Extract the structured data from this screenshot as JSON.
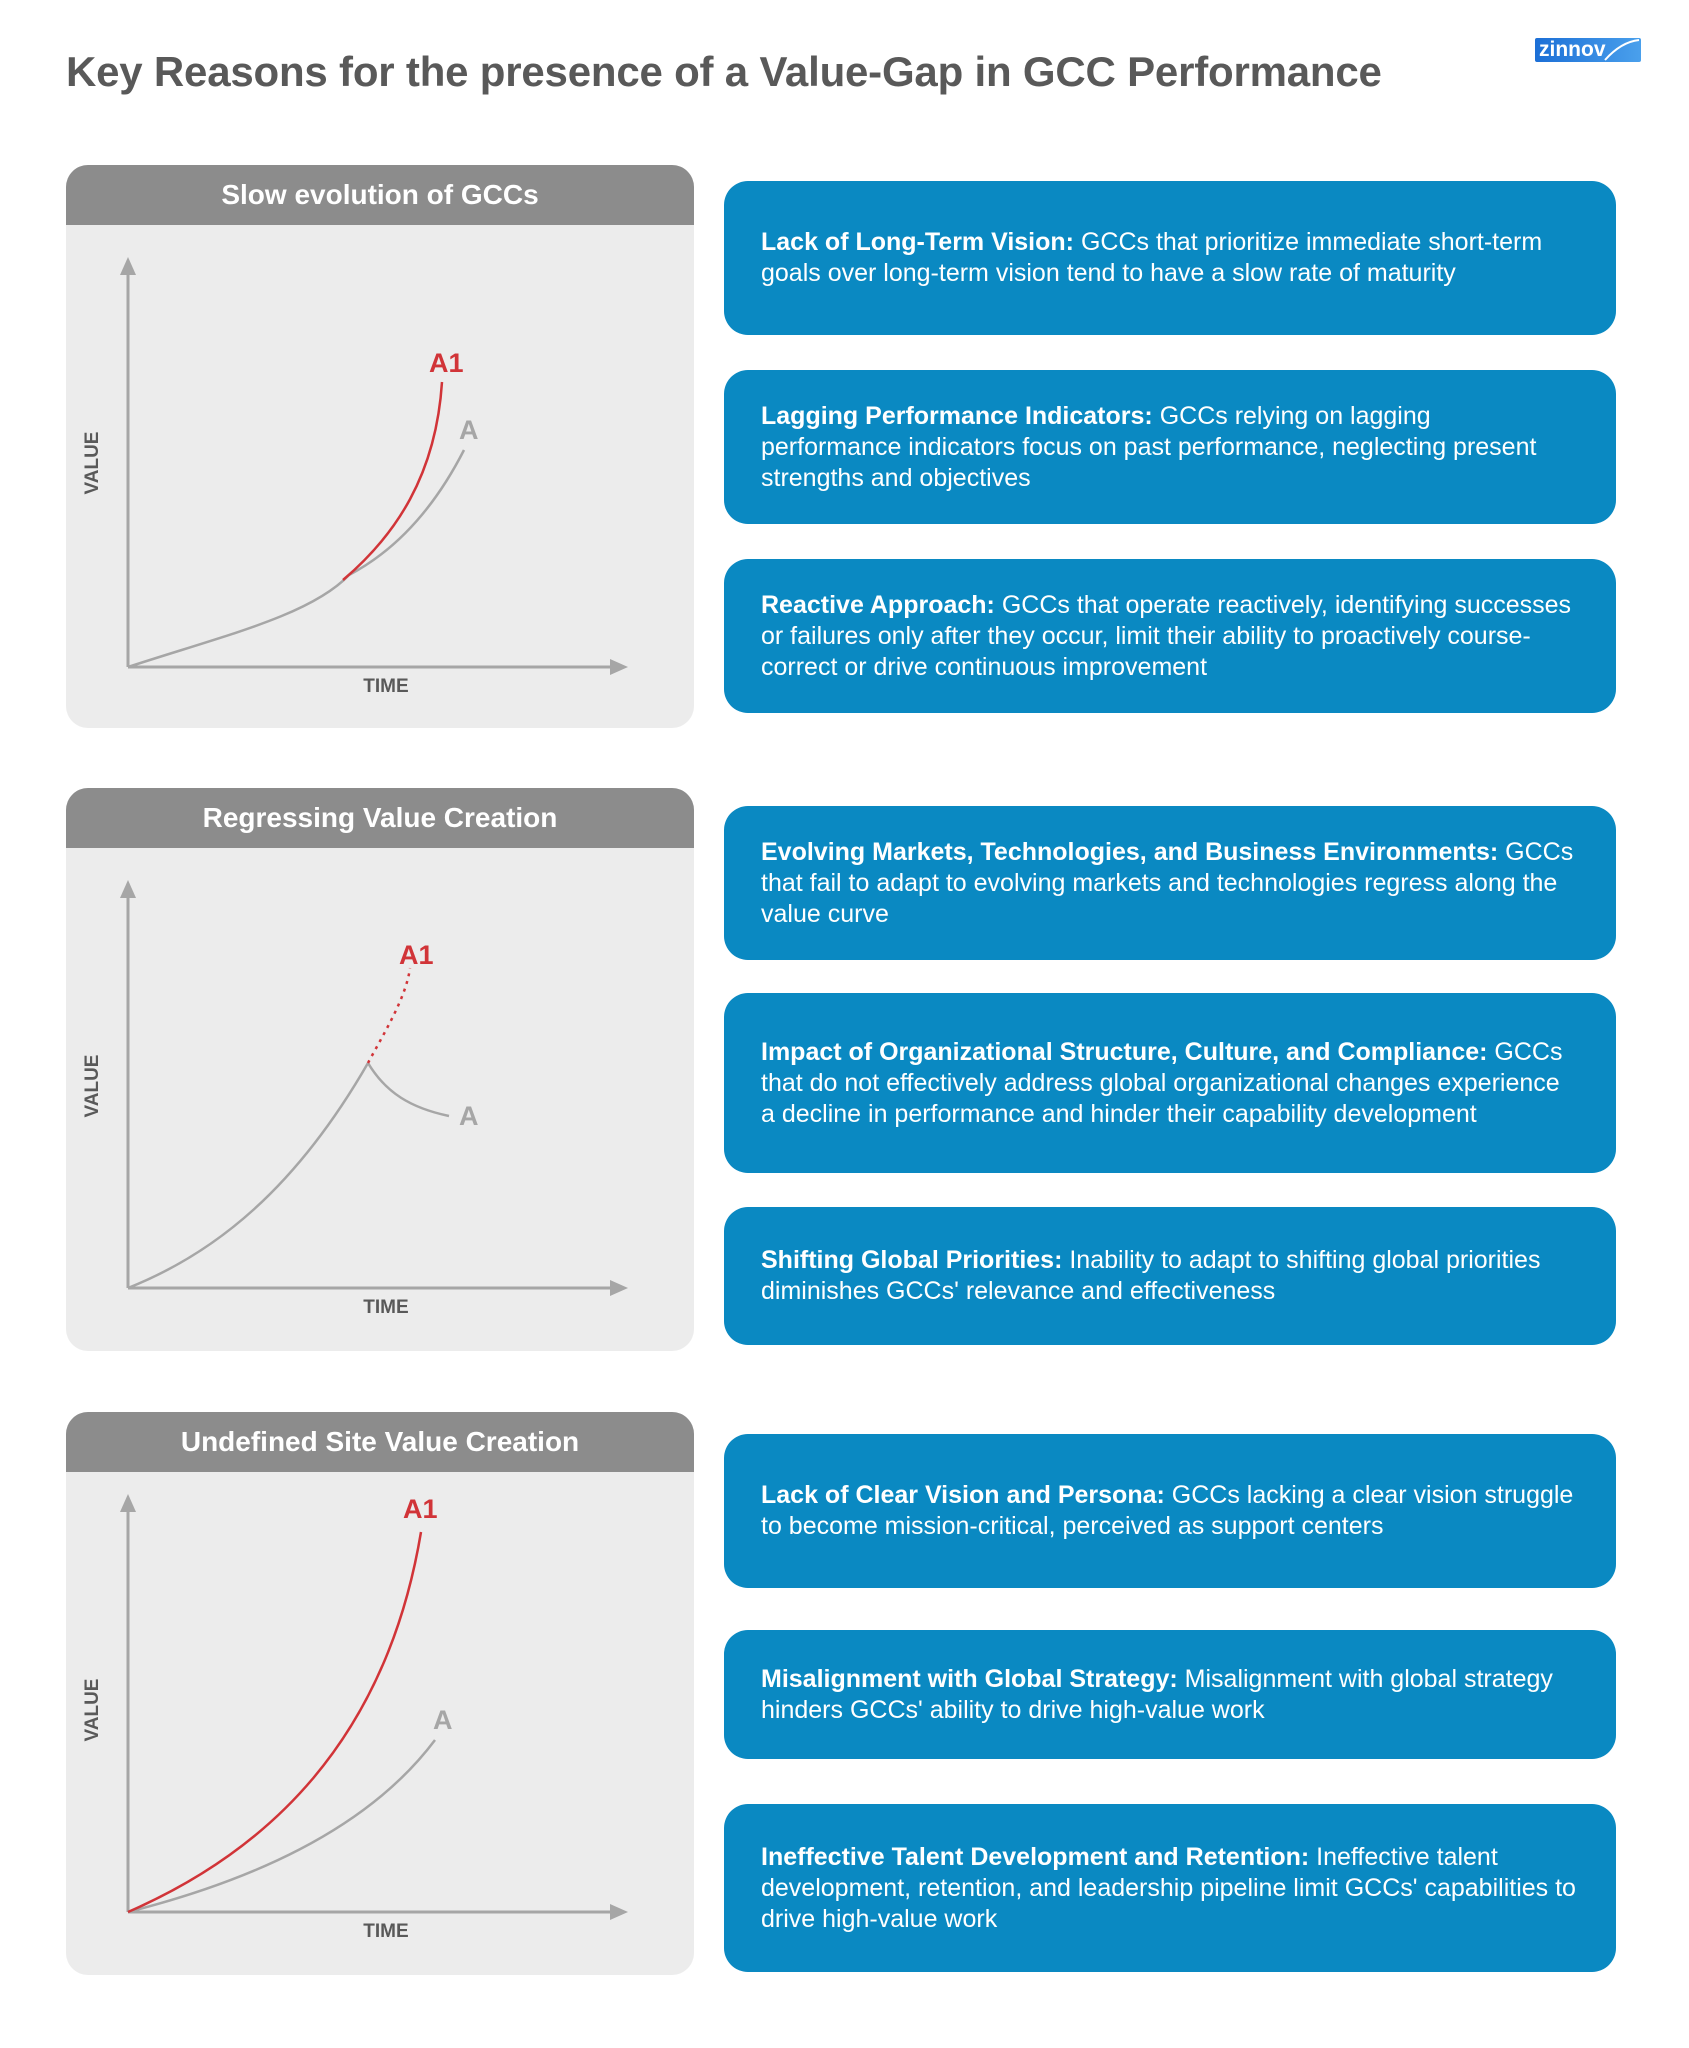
{
  "title": "Key Reasons for the presence of a Value-Gap in GCC Performance",
  "logo": {
    "text": "zinnov"
  },
  "colors": {
    "card_bg": "#0a89c2",
    "panel_bg": "#ececec",
    "panel_header": "#8c8c8c",
    "curve_a": "#a6a6a6",
    "curve_a1": "#d13438",
    "title_text": "#595959"
  },
  "panels": [
    {
      "title": "Slow evolution of GCCs",
      "xlabel": "TIME",
      "ylabel": "VALUE",
      "series_a1_label": "A1",
      "series_a_label": "A"
    },
    {
      "title": "Regressing Value Creation",
      "xlabel": "TIME",
      "ylabel": "VALUE",
      "series_a1_label": "A1",
      "series_a_label": "A"
    },
    {
      "title": "Undefined Site Value Creation",
      "xlabel": "TIME",
      "ylabel": "VALUE",
      "series_a1_label": "A1",
      "series_a_label": "A"
    }
  ],
  "cards": [
    {
      "head": "Lack of Long-Term Vision:",
      "body": " GCCs that prioritize immediate short-term goals over long-term vision tend to have a slow rate of maturity"
    },
    {
      "head": "Lagging Performance Indicators:",
      "body": " GCCs relying on lagging performance indicators focus on past performance, neglecting present strengths and objectives"
    },
    {
      "head": "Reactive Approach:",
      "body": " GCCs that operate reactively, identifying successes or failures only after they occur, limit their ability to proactively course-correct or drive continuous improvement"
    },
    {
      "head": "Evolving Markets, Technologies, and Business Environments:",
      "body": " GCCs that fail to adapt to evolving markets and technologies regress along the value curve"
    },
    {
      "head": "Impact of Organizational Structure, Culture, and Compliance:",
      "body": " GCCs that do not effectively address global organizational changes experience a decline in performance and hinder their capability development"
    },
    {
      "head": "Shifting Global Priorities:",
      "body": " Inability to adapt to shifting global priorities diminishes GCCs' relevance and effectiveness"
    },
    {
      "head": "Lack of Clear Vision and Persona:",
      "body": " GCCs lacking a clear vision struggle to become mission-critical, perceived as support centers"
    },
    {
      "head": "Misalignment with Global Strategy:",
      "body": " Misalignment with global strategy hinders GCCs' ability to drive high-value work"
    },
    {
      "head": "Ineffective Talent Development and Retention:",
      "body": " Ineffective talent development, retention, and leadership pipeline limit GCCs' capabilities to drive high-value work"
    }
  ]
}
